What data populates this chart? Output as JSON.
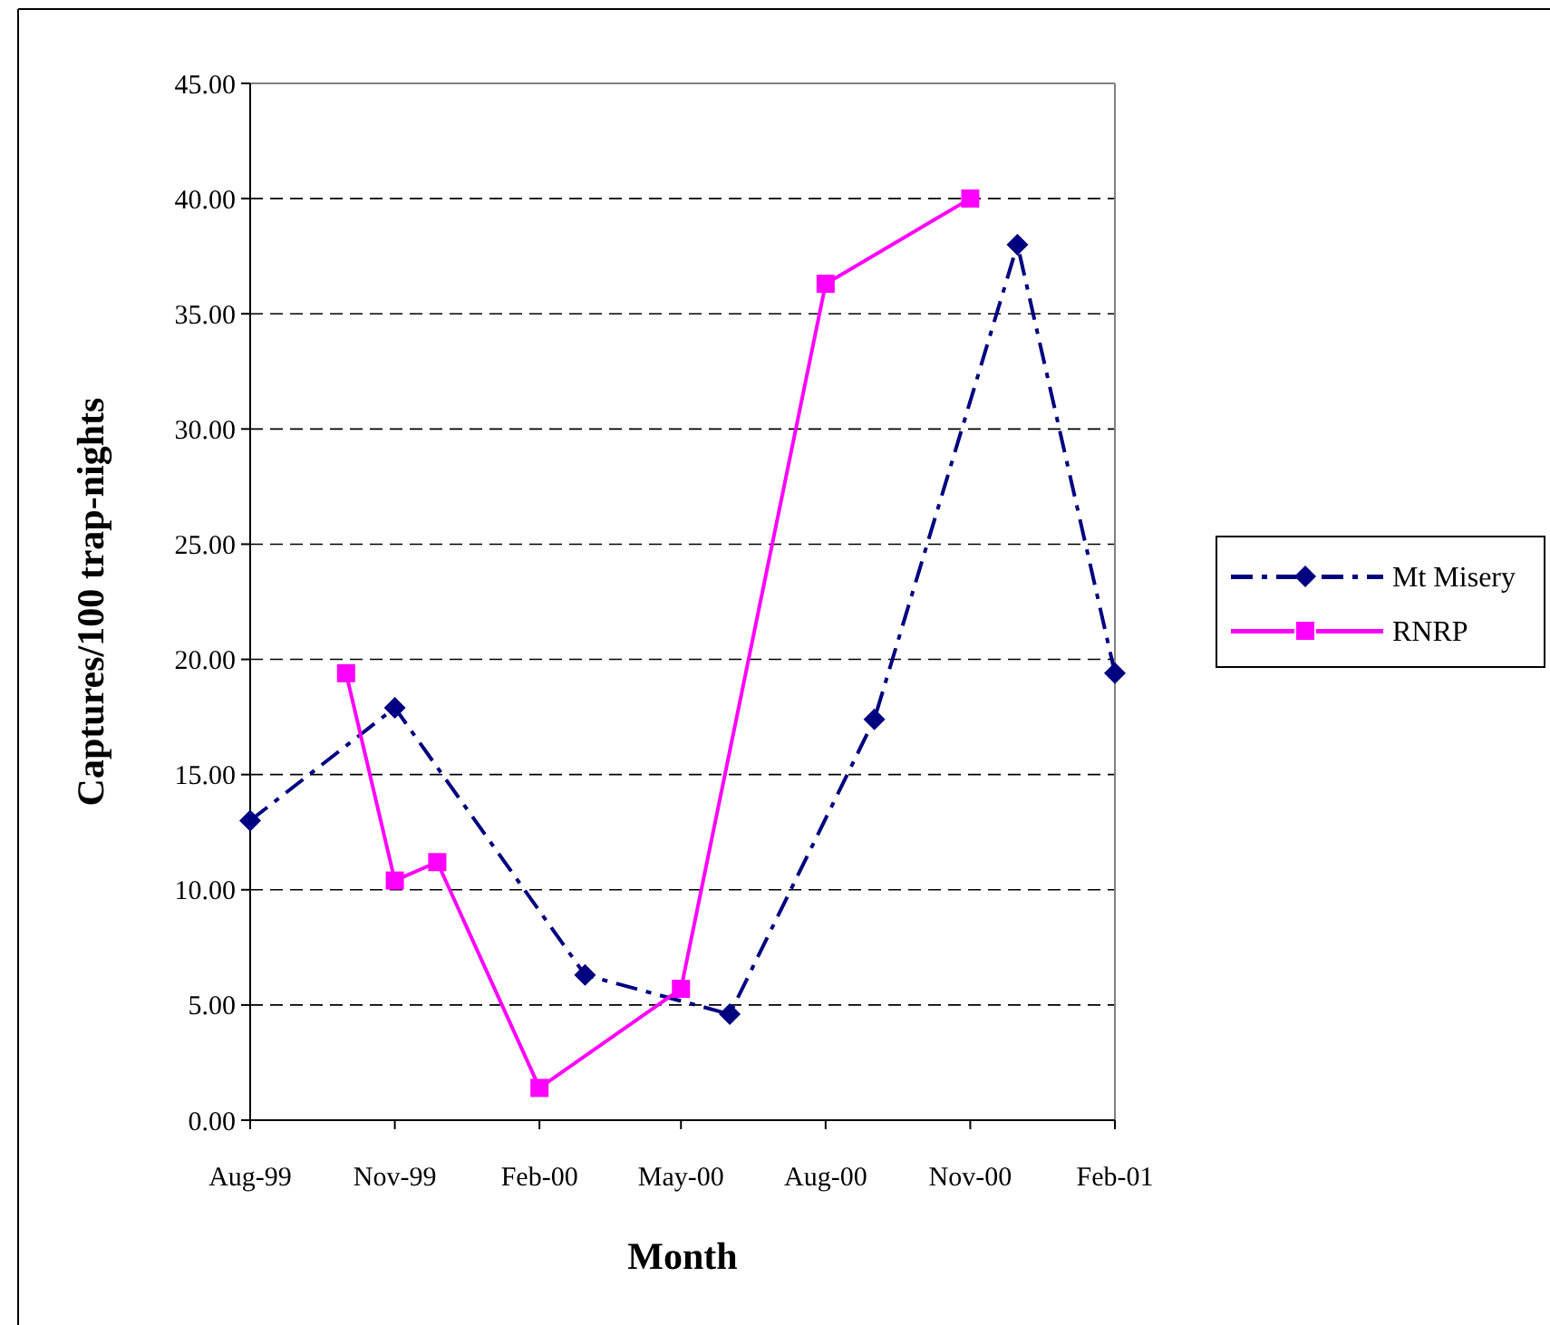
{
  "chart_data": {
    "type": "line",
    "xlabel": "Month",
    "ylabel": "Captures/100 trap-nights",
    "xlim": [
      "1999-08-01",
      "2001-02-01"
    ],
    "xticks": [
      {
        "value": "1999-08-01",
        "label": "Aug-99"
      },
      {
        "value": "1999-11-01",
        "label": "Nov-99"
      },
      {
        "value": "2000-02-01",
        "label": "Feb-00"
      },
      {
        "value": "2000-05-01",
        "label": "May-00"
      },
      {
        "value": "2000-08-01",
        "label": "Aug-00"
      },
      {
        "value": "2000-11-01",
        "label": "Nov-00"
      },
      {
        "value": "2001-02-01",
        "label": "Feb-01"
      }
    ],
    "ylim": [
      0,
      45
    ],
    "yticks": [
      {
        "value": 0,
        "label": "0.00"
      },
      {
        "value": 5,
        "label": "5.00"
      },
      {
        "value": 10,
        "label": "10.00"
      },
      {
        "value": 15,
        "label": "15.00"
      },
      {
        "value": 20,
        "label": "20.00"
      },
      {
        "value": 25,
        "label": "25.00"
      },
      {
        "value": 30,
        "label": "30.00"
      },
      {
        "value": 35,
        "label": "35.00"
      },
      {
        "value": 40,
        "label": "40.00"
      },
      {
        "value": 45,
        "label": "45.00"
      }
    ],
    "grid": "y",
    "legend": "right",
    "series": [
      {
        "name": "Mt Misery",
        "color": "#000080",
        "marker": "diamond",
        "line_style": "dashed",
        "x": [
          "1999-08-01",
          "1999-11-01",
          "2000-03-01",
          "2000-06-01",
          "2000-09-01",
          "2000-12-01",
          "2001-02-01"
        ],
        "values": [
          13.0,
          17.9,
          6.3,
          4.6,
          17.4,
          38.0,
          19.4
        ]
      },
      {
        "name": "RNRP",
        "color": "#ff00ff",
        "marker": "square",
        "line_style": "solid",
        "x": [
          "1999-10-01",
          "1999-11-01",
          "1999-11-28",
          "2000-02-01",
          "2000-05-01",
          "2000-08-01",
          "2000-11-01"
        ],
        "values": [
          19.4,
          10.4,
          11.2,
          1.4,
          5.7,
          36.3,
          40.0
        ]
      }
    ]
  }
}
